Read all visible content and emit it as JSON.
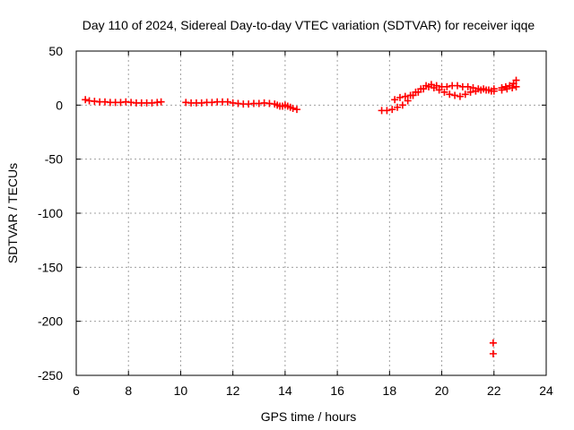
{
  "chart_data": {
    "type": "scatter",
    "title": "Day 110 of 2024, Sidereal Day-to-day VTEC variation (SDTVAR) for receiver iqqe",
    "xlabel": "GPS time / hours",
    "ylabel": "SDTVAR / TECUs",
    "xlim": [
      6,
      24
    ],
    "ylim": [
      -250,
      50
    ],
    "xticks": [
      6,
      8,
      10,
      12,
      14,
      16,
      18,
      20,
      22,
      24
    ],
    "yticks": [
      -250,
      -200,
      -150,
      -100,
      -50,
      0,
      50
    ],
    "grid": true,
    "marker": "plus",
    "color": "#ff0000",
    "series": [
      {
        "name": "segment-1",
        "x": [
          6.35,
          6.5,
          6.7,
          6.9,
          7.1,
          7.3,
          7.5,
          7.7,
          7.9,
          8.1,
          8.3,
          8.5,
          8.7,
          8.9,
          9.1,
          9.25
        ],
        "y": [
          5,
          4,
          3.5,
          3,
          3,
          2.5,
          2.5,
          2.5,
          3,
          2.5,
          2,
          2,
          2,
          2,
          2.5,
          3
        ]
      },
      {
        "name": "segment-2",
        "x": [
          10.2,
          10.4,
          10.6,
          10.8,
          11.0,
          11.2,
          11.4,
          11.6,
          11.8,
          12.0,
          12.2,
          12.4,
          12.6,
          12.8,
          13.0,
          13.2,
          13.4,
          13.6,
          13.7,
          13.8,
          13.9,
          14.0,
          14.1,
          14.2,
          14.3,
          14.45
        ],
        "y": [
          2.5,
          2,
          2,
          2,
          2.5,
          2.5,
          3,
          3,
          3,
          2,
          1.5,
          1,
          1,
          1.5,
          1.5,
          2,
          1.5,
          1,
          0,
          -1,
          -1,
          0,
          -1,
          -2,
          -3,
          -4
        ]
      },
      {
        "name": "segment-3-lower",
        "x": [
          17.7,
          17.9,
          18.1,
          18.3,
          18.5,
          18.7,
          18.9,
          19.1,
          19.3,
          19.5,
          19.7,
          19.9,
          20.1,
          20.3,
          20.5,
          20.7,
          20.9,
          21.1,
          21.3,
          21.5,
          21.7,
          21.9,
          22.0
        ],
        "y": [
          -5,
          -5,
          -4,
          -2,
          0,
          4,
          9,
          12,
          15,
          17,
          16,
          14,
          12,
          10,
          9,
          8,
          10,
          12,
          13,
          14,
          14,
          13,
          13
        ]
      },
      {
        "name": "segment-3-upper",
        "x": [
          18.2,
          18.4,
          18.6,
          18.8,
          19.0,
          19.2,
          19.4,
          19.6,
          19.8,
          20.0,
          20.2,
          20.4,
          20.6,
          20.8,
          21.0,
          21.2,
          21.4,
          21.6,
          21.8,
          22.0
        ],
        "y": [
          5,
          7,
          8,
          9,
          12,
          15,
          18,
          19,
          18,
          17,
          17,
          18,
          18,
          17,
          17,
          16,
          15,
          15,
          14,
          15
        ]
      },
      {
        "name": "segment-4",
        "x": [
          22.3,
          22.45,
          22.6,
          22.75,
          22.85,
          22.3,
          22.5,
          22.7,
          22.85
        ],
        "y": [
          16,
          17,
          18,
          20,
          23,
          14,
          15,
          16,
          17
        ]
      },
      {
        "name": "outliers",
        "x": [
          21.97,
          21.97
        ],
        "y": [
          -220,
          -230
        ]
      }
    ]
  }
}
